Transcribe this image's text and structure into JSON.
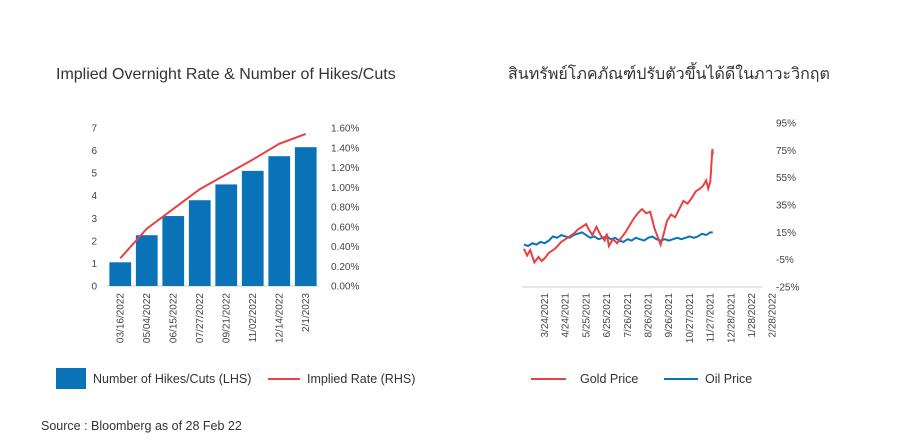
{
  "source": "Source : Bloomberg as of 28 Feb 22",
  "chart_data": [
    {
      "type": "bar",
      "title": "Implied Overnight Rate & Number of Hikes/Cuts",
      "categories": [
        "03/16/2022",
        "05/04/2022",
        "06/15/2022",
        "07/27/2022",
        "09/21/2022",
        "11/02/2022",
        "12/14/2022",
        "2/1/2023"
      ],
      "series": [
        {
          "name": "Number of Hikes/Cuts (LHS)",
          "type": "bar",
          "axis": "left",
          "values": [
            1.05,
            2.25,
            3.1,
            3.8,
            4.5,
            5.1,
            5.75,
            6.15
          ]
        },
        {
          "name": "Implied Rate (RHS)",
          "type": "line",
          "axis": "right",
          "values": [
            0.28,
            0.58,
            0.78,
            0.98,
            1.13,
            1.28,
            1.44,
            1.54
          ]
        }
      ],
      "y_left": {
        "ticks": [
          "0",
          "1",
          "2",
          "3",
          "4",
          "5",
          "6",
          "7"
        ],
        "range": [
          0,
          7
        ]
      },
      "y_right": {
        "ticks": [
          "0.00%",
          "0.20%",
          "0.40%",
          "0.60%",
          "0.80%",
          "1.00%",
          "1.20%",
          "1.40%",
          "1.60%"
        ],
        "range": [
          0,
          1.6
        ]
      },
      "colors": {
        "bar": "#0a73b8",
        "line": "#e84143"
      },
      "legend": "bottom",
      "grid": false
    },
    {
      "type": "line",
      "title": "สินทรัพย์โภคภัณฑ์ปรับตัวขึ้นได้ดีในภาวะวิกฤต",
      "x_ticks": [
        "3/24/2021",
        "4/24/2021",
        "5/25/2021",
        "6/25/2021",
        "7/26/2021",
        "8/26/2021",
        "9/26/2021",
        "10/27/2021",
        "11/27/2021",
        "12/28/2021",
        "1/28/2022",
        "2/28/2022"
      ],
      "y_right": {
        "ticks": [
          "95%",
          "75%",
          "55%",
          "35%",
          "15%",
          "-5%",
          "-25%"
        ],
        "range": [
          -25,
          95
        ]
      },
      "series": [
        {
          "name": "Gold Price",
          "color": "#e84143",
          "points": [
            [
              0,
              3
            ],
            [
              0.15,
              -2
            ],
            [
              0.3,
              2
            ],
            [
              0.5,
              -7
            ],
            [
              0.7,
              -3
            ],
            [
              0.85,
              -6
            ],
            [
              1.0,
              -4
            ],
            [
              1.2,
              0
            ],
            [
              1.5,
              3
            ],
            [
              1.8,
              8
            ],
            [
              2.1,
              11
            ],
            [
              2.4,
              14
            ],
            [
              2.6,
              17
            ],
            [
              2.8,
              19
            ],
            [
              3.0,
              21
            ],
            [
              3.1,
              18
            ],
            [
              3.3,
              13
            ],
            [
              3.5,
              19
            ],
            [
              3.7,
              13
            ],
            [
              3.9,
              9
            ],
            [
              4.0,
              14
            ],
            [
              4.1,
              5
            ],
            [
              4.3,
              10
            ],
            [
              4.5,
              7
            ],
            [
              4.7,
              11
            ],
            [
              4.9,
              15
            ],
            [
              5.1,
              20
            ],
            [
              5.3,
              25
            ],
            [
              5.5,
              29
            ],
            [
              5.7,
              32
            ],
            [
              5.9,
              29
            ],
            [
              6.1,
              30
            ],
            [
              6.3,
              18
            ],
            [
              6.45,
              12
            ],
            [
              6.6,
              6
            ],
            [
              6.75,
              14
            ],
            [
              6.9,
              23
            ],
            [
              7.1,
              28
            ],
            [
              7.3,
              26
            ],
            [
              7.5,
              32
            ],
            [
              7.7,
              38
            ],
            [
              7.9,
              36
            ],
            [
              8.1,
              40
            ],
            [
              8.3,
              45
            ],
            [
              8.5,
              47
            ],
            [
              8.65,
              49
            ],
            [
              8.8,
              53
            ],
            [
              8.9,
              47
            ],
            [
              9.0,
              52
            ],
            [
              9.05,
              64
            ],
            [
              9.1,
              76
            ],
            [
              9.12,
              72
            ]
          ]
        },
        {
          "name": "Oil Price",
          "color": "#0a73b8",
          "points": [
            [
              0,
              6
            ],
            [
              0.2,
              5
            ],
            [
              0.4,
              7
            ],
            [
              0.6,
              6
            ],
            [
              0.8,
              8
            ],
            [
              1.0,
              7
            ],
            [
              1.2,
              9
            ],
            [
              1.4,
              12
            ],
            [
              1.6,
              11
            ],
            [
              1.8,
              13
            ],
            [
              2.0,
              12
            ],
            [
              2.2,
              11
            ],
            [
              2.4,
              13
            ],
            [
              2.6,
              14
            ],
            [
              2.8,
              15
            ],
            [
              3.0,
              13
            ],
            [
              3.2,
              11
            ],
            [
              3.4,
              12
            ],
            [
              3.6,
              10
            ],
            [
              3.8,
              11
            ],
            [
              4.0,
              12
            ],
            [
              4.2,
              10
            ],
            [
              4.4,
              11
            ],
            [
              4.6,
              9
            ],
            [
              4.8,
              8
            ],
            [
              5.0,
              10
            ],
            [
              5.2,
              9
            ],
            [
              5.4,
              11
            ],
            [
              5.6,
              10
            ],
            [
              5.8,
              9
            ],
            [
              6.0,
              11
            ],
            [
              6.2,
              12
            ],
            [
              6.4,
              10
            ],
            [
              6.6,
              9
            ],
            [
              6.8,
              10
            ],
            [
              7.0,
              9
            ],
            [
              7.2,
              10
            ],
            [
              7.4,
              11
            ],
            [
              7.6,
              10
            ],
            [
              7.8,
              11
            ],
            [
              8.0,
              12
            ],
            [
              8.2,
              11
            ],
            [
              8.4,
              12
            ],
            [
              8.6,
              14
            ],
            [
              8.8,
              13
            ],
            [
              9.0,
              15
            ],
            [
              9.12,
              15
            ]
          ]
        }
      ],
      "legend": "bottom",
      "grid": false
    }
  ]
}
